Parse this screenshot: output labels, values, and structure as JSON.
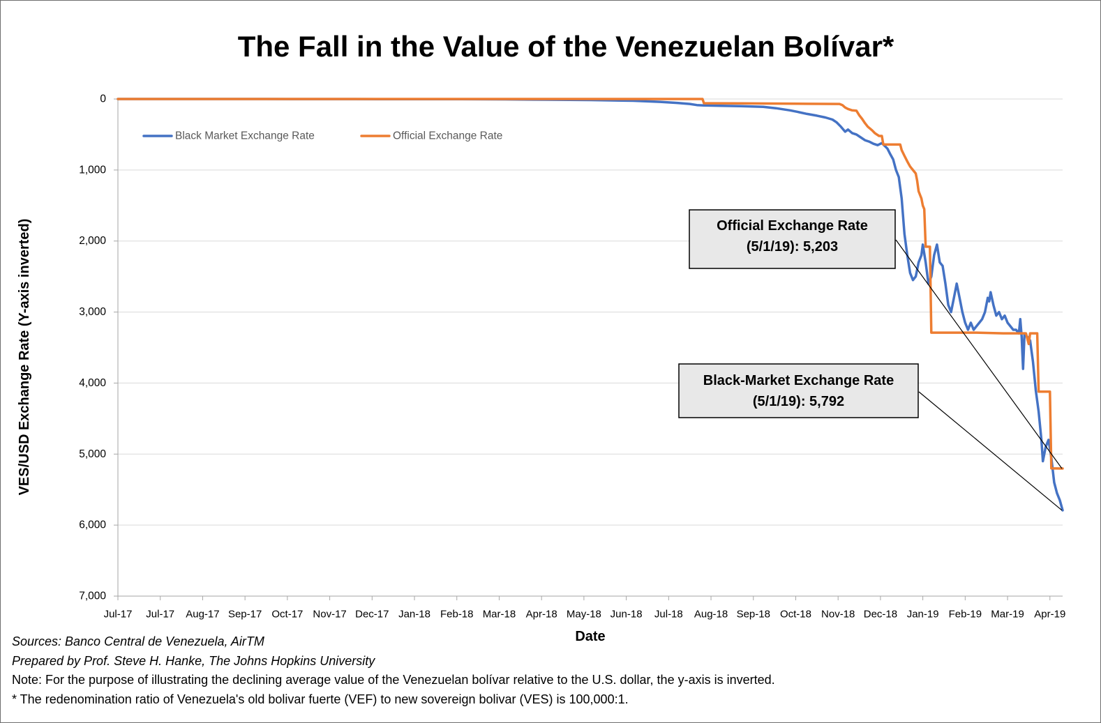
{
  "footnotes": {
    "sources": "Sources: Banco Central de Venezuela, AirTM",
    "prepared_by": "Prepared by Prof. Steve H. Hanke, The Johns Hopkins University",
    "note": "Note: For the purpose of illustrating the declining average value of the Venezuelan bolívar relative to the U.S. dollar, the y-axis is inverted.",
    "redenomination": "* The redenomination ratio of Venezuela's old bolivar fuerte (VEF) to new sovereign bolivar (VES) is 100,000:1."
  },
  "chart_data": {
    "type": "line",
    "title": "The Fall in the Value of the Venezuelan Bolívar*",
    "xlabel": "Date",
    "ylabel": "VES/USD Exchange Rate (Y-axis inverted)",
    "xlim": [
      "2017-07-01",
      "2019-05-01"
    ],
    "ylim": [
      0,
      7000
    ],
    "y_inverted": true,
    "grid": "horizontal",
    "legend": "top-left",
    "y_ticks": [
      0,
      1000,
      2000,
      3000,
      4000,
      5000,
      6000,
      7000
    ],
    "y_tick_labels": [
      "0",
      "1,000",
      "2,000",
      "3,000",
      "4,000",
      "5,000",
      "6,000",
      "7,000"
    ],
    "x_tick_labels": [
      "Jul-17",
      "Jul-17",
      "Aug-17",
      "Sep-17",
      "Oct-17",
      "Nov-17",
      "Dec-17",
      "Jan-18",
      "Feb-18",
      "Mar-18",
      "Apr-18",
      "May-18",
      "Jun-18",
      "Jul-18",
      "Aug-18",
      "Sep-18",
      "Oct-18",
      "Nov-18",
      "Dec-18",
      "Jan-19",
      "Feb-19",
      "Mar-19",
      "Apr-19"
    ],
    "series": [
      {
        "name": "Black Market Exchange Rate",
        "color": "#4472C4",
        "points": [
          [
            "2017-07-01",
            0
          ],
          [
            "2017-08-01",
            0
          ],
          [
            "2017-09-01",
            0
          ],
          [
            "2017-10-01",
            0
          ],
          [
            "2017-11-01",
            1
          ],
          [
            "2017-12-01",
            1
          ],
          [
            "2018-01-01",
            2
          ],
          [
            "2018-02-01",
            2
          ],
          [
            "2018-03-01",
            2
          ],
          [
            "2018-04-01",
            5
          ],
          [
            "2018-05-01",
            10
          ],
          [
            "2018-06-01",
            15
          ],
          [
            "2018-07-01",
            25
          ],
          [
            "2018-07-20",
            40
          ],
          [
            "2018-08-01",
            55
          ],
          [
            "2018-08-10",
            70
          ],
          [
            "2018-08-15",
            85
          ],
          [
            "2018-08-20",
            90
          ],
          [
            "2018-09-01",
            95
          ],
          [
            "2018-09-15",
            100
          ],
          [
            "2018-10-01",
            110
          ],
          [
            "2018-10-10",
            130
          ],
          [
            "2018-10-20",
            160
          ],
          [
            "2018-10-25",
            180
          ],
          [
            "2018-11-01",
            210
          ],
          [
            "2018-11-08",
            235
          ],
          [
            "2018-11-14",
            260
          ],
          [
            "2018-11-19",
            290
          ],
          [
            "2018-11-22",
            330
          ],
          [
            "2018-11-25",
            390
          ],
          [
            "2018-11-28",
            460
          ],
          [
            "2018-11-30",
            430
          ],
          [
            "2018-12-03",
            480
          ],
          [
            "2018-12-06",
            500
          ],
          [
            "2018-12-09",
            540
          ],
          [
            "2018-12-12",
            580
          ],
          [
            "2018-12-15",
            600
          ],
          [
            "2018-12-18",
            630
          ],
          [
            "2018-12-21",
            650
          ],
          [
            "2018-12-24",
            620
          ],
          [
            "2018-12-26",
            660
          ],
          [
            "2018-12-28",
            700
          ],
          [
            "2018-12-30",
            780
          ],
          [
            "2019-01-01",
            850
          ],
          [
            "2019-01-03",
            1000
          ],
          [
            "2019-01-05",
            1100
          ],
          [
            "2019-01-07",
            1400
          ],
          [
            "2019-01-09",
            1900
          ],
          [
            "2019-01-11",
            2200
          ],
          [
            "2019-01-13",
            2450
          ],
          [
            "2019-01-15",
            2550
          ],
          [
            "2019-01-17",
            2500
          ],
          [
            "2019-01-19",
            2300
          ],
          [
            "2019-01-21",
            2200
          ],
          [
            "2019-01-22",
            2050
          ],
          [
            "2019-01-24",
            2300
          ],
          [
            "2019-01-26",
            2600
          ],
          [
            "2019-01-28",
            2500
          ],
          [
            "2019-01-30",
            2200
          ],
          [
            "2019-02-01",
            2050
          ],
          [
            "2019-02-03",
            2300
          ],
          [
            "2019-02-05",
            2350
          ],
          [
            "2019-02-07",
            2600
          ],
          [
            "2019-02-09",
            2900
          ],
          [
            "2019-02-11",
            3000
          ],
          [
            "2019-02-13",
            2800
          ],
          [
            "2019-02-15",
            2600
          ],
          [
            "2019-02-17",
            2800
          ],
          [
            "2019-02-19",
            3000
          ],
          [
            "2019-02-21",
            3150
          ],
          [
            "2019-02-23",
            3250
          ],
          [
            "2019-02-25",
            3150
          ],
          [
            "2019-02-27",
            3250
          ],
          [
            "2019-03-01",
            3200
          ],
          [
            "2019-03-03",
            3150
          ],
          [
            "2019-03-05",
            3100
          ],
          [
            "2019-03-07",
            3000
          ],
          [
            "2019-03-09",
            2800
          ],
          [
            "2019-03-10",
            2850
          ],
          [
            "2019-03-11",
            2720
          ],
          [
            "2019-03-13",
            2900
          ],
          [
            "2019-03-15",
            3050
          ],
          [
            "2019-03-17",
            3000
          ],
          [
            "2019-03-19",
            3100
          ],
          [
            "2019-03-21",
            3050
          ],
          [
            "2019-03-23",
            3150
          ],
          [
            "2019-03-25",
            3200
          ],
          [
            "2019-03-27",
            3250
          ],
          [
            "2019-03-29",
            3250
          ],
          [
            "2019-03-31",
            3300
          ],
          [
            "2019-04-01",
            3100
          ],
          [
            "2019-04-02",
            3350
          ],
          [
            "2019-04-03",
            3800
          ],
          [
            "2019-04-04",
            3300
          ],
          [
            "2019-04-06",
            3350
          ],
          [
            "2019-04-08",
            3400
          ],
          [
            "2019-04-10",
            3700
          ],
          [
            "2019-04-12",
            4100
          ],
          [
            "2019-04-14",
            4400
          ],
          [
            "2019-04-16",
            4800
          ],
          [
            "2019-04-17",
            5100
          ],
          [
            "2019-04-19",
            4900
          ],
          [
            "2019-04-21",
            4800
          ],
          [
            "2019-04-23",
            5050
          ],
          [
            "2019-04-25",
            5400
          ],
          [
            "2019-04-27",
            5550
          ],
          [
            "2019-04-29",
            5650
          ],
          [
            "2019-05-01",
            5792
          ]
        ]
      },
      {
        "name": "Official Exchange Rate",
        "color": "#ED7D31",
        "points": [
          [
            "2017-07-01",
            0
          ],
          [
            "2018-08-19",
            0
          ],
          [
            "2018-08-20",
            60
          ],
          [
            "2018-09-15",
            62
          ],
          [
            "2018-10-15",
            65
          ],
          [
            "2018-11-01",
            68
          ],
          [
            "2018-11-24",
            70
          ],
          [
            "2018-11-26",
            85
          ],
          [
            "2018-11-28",
            120
          ],
          [
            "2018-11-30",
            140
          ],
          [
            "2018-12-03",
            160
          ],
          [
            "2018-12-06",
            165
          ],
          [
            "2018-12-08",
            230
          ],
          [
            "2018-12-10",
            280
          ],
          [
            "2018-12-12",
            340
          ],
          [
            "2018-12-14",
            390
          ],
          [
            "2018-12-17",
            440
          ],
          [
            "2018-12-19",
            480
          ],
          [
            "2018-12-22",
            520
          ],
          [
            "2018-12-24",
            520
          ],
          [
            "2018-12-25",
            640
          ],
          [
            "2019-01-06",
            640
          ],
          [
            "2019-01-07",
            720
          ],
          [
            "2019-01-09",
            800
          ],
          [
            "2019-01-11",
            880
          ],
          [
            "2019-01-13",
            950
          ],
          [
            "2019-01-15",
            1000
          ],
          [
            "2019-01-17",
            1050
          ],
          [
            "2019-01-18",
            1150
          ],
          [
            "2019-01-19",
            1300
          ],
          [
            "2019-01-21",
            1400
          ],
          [
            "2019-01-22",
            1500
          ],
          [
            "2019-01-23",
            1550
          ],
          [
            "2019-01-24",
            2080
          ],
          [
            "2019-01-27",
            2080
          ],
          [
            "2019-01-28",
            3290
          ],
          [
            "2019-02-15",
            3290
          ],
          [
            "2019-03-01",
            3290
          ],
          [
            "2019-03-20",
            3300
          ],
          [
            "2019-04-05",
            3300
          ],
          [
            "2019-04-07",
            3450
          ],
          [
            "2019-04-08",
            3300
          ],
          [
            "2019-04-13",
            3300
          ],
          [
            "2019-04-14",
            4120
          ],
          [
            "2019-04-22",
            4120
          ],
          [
            "2019-04-23",
            5200
          ],
          [
            "2019-05-01",
            5203
          ]
        ]
      }
    ],
    "annotations": [
      {
        "label": "Official Exchange Rate",
        "value_text": "(5/1/19): 5,203",
        "point": {
          "date": "2019-05-01",
          "value": 5203
        }
      },
      {
        "label": "Black-Market Exchange Rate",
        "value_text": "(5/1/19): 5,792",
        "point": {
          "date": "2019-05-01",
          "value": 5792
        }
      }
    ]
  }
}
